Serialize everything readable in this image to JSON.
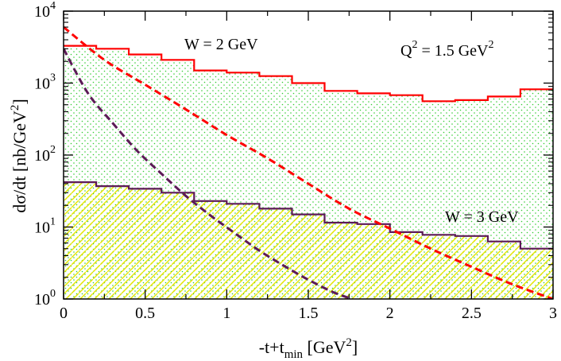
{
  "chart_data": {
    "type": "line",
    "yscale": "log",
    "xlim": [
      0,
      3
    ],
    "ylim": [
      1,
      10000
    ],
    "xlabel": {
      "main": "-t+t",
      "sub": "min",
      "unit_pre": " [GeV",
      "sup": "2",
      "unit_post": "]"
    },
    "ylabel": {
      "main": "dσ/dt [nb/GeV",
      "sup": "2",
      "post": "]"
    },
    "x_ticks": [
      0,
      0.5,
      1,
      1.5,
      2,
      2.5,
      3
    ],
    "x_tick_labels": [
      "0",
      "0.5",
      "1",
      "1.5",
      "2",
      "2.5",
      "3"
    ],
    "y_ticks": [
      1,
      10,
      100,
      1000,
      10000
    ],
    "y_tick_labels": [
      {
        "base": "10",
        "exp": "0"
      },
      {
        "base": "10",
        "exp": "1"
      },
      {
        "base": "10",
        "exp": "2"
      },
      {
        "base": "10",
        "exp": "3"
      },
      {
        "base": "10",
        "exp": "4"
      }
    ],
    "annotations": {
      "w2": "W = 2 GeV",
      "q2_pre": "Q",
      "q2_sup": "2",
      "q2_mid": " = 1.5 GeV",
      "q2_sup2": "2",
      "w3": "W = 3 GeV"
    },
    "series": [
      {
        "name": "W = 2 GeV histogram",
        "kind": "step",
        "color": "#ff0000",
        "fill": "dots",
        "fill_color": "#33cc33",
        "bin_edges": [
          0,
          0.2,
          0.4,
          0.6,
          0.8,
          1.0,
          1.2,
          1.4,
          1.6,
          1.8,
          2.0,
          2.2,
          2.4,
          2.6,
          2.8,
          3.0
        ],
        "values": [
          3300,
          3000,
          2500,
          2100,
          1500,
          1400,
          1250,
          1000,
          780,
          720,
          680,
          560,
          580,
          650,
          820
        ]
      },
      {
        "name": "W = 3 GeV histogram",
        "kind": "step",
        "color": "#5c1a57",
        "fill": "hatch",
        "fill_color": "#e6e600",
        "bin_edges": [
          0,
          0.2,
          0.4,
          0.6,
          0.8,
          1.0,
          1.2,
          1.4,
          1.6,
          1.8,
          2.0,
          2.2,
          2.4,
          2.6,
          2.8,
          3.0
        ],
        "values": [
          42,
          37,
          34,
          30,
          23,
          21,
          18,
          15,
          11.5,
          11,
          8.5,
          7.8,
          7.5,
          6.3,
          5
        ]
      },
      {
        "name": "W = 2 GeV model",
        "kind": "dashed",
        "color": "#ff0000",
        "x": [
          0,
          0.25,
          0.5,
          0.75,
          1.0,
          1.25,
          1.5,
          1.75,
          2.0,
          2.25,
          2.5,
          2.75,
          3.0
        ],
        "y": [
          6000,
          2100,
          950,
          430,
          190,
          90,
          40,
          18,
          9.5,
          5,
          2.8,
          1.6,
          1.0
        ]
      },
      {
        "name": "W = 3 GeV model",
        "kind": "dashed",
        "color": "#5c1a57",
        "x": [
          0,
          0.15,
          0.3,
          0.45,
          0.6,
          0.75,
          0.9,
          1.05,
          1.2,
          1.35,
          1.5,
          1.65,
          1.77
        ],
        "y": [
          3000,
          720,
          280,
          115,
          55,
          27,
          14.5,
          8.2,
          4.7,
          2.9,
          1.85,
          1.25,
          1.0
        ]
      }
    ]
  }
}
